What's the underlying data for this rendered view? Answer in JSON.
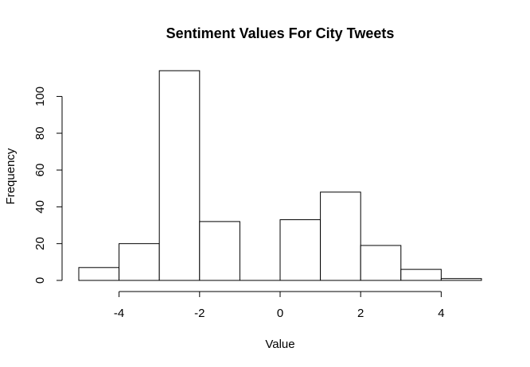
{
  "chart_data": {
    "type": "bar",
    "title": "Sentiment Values For City Tweets",
    "xlabel": "Value",
    "ylabel": "Frequency",
    "bins": [
      {
        "start": -5,
        "end": -4,
        "count": 7
      },
      {
        "start": -4,
        "end": -3,
        "count": 20
      },
      {
        "start": -3,
        "end": -2,
        "count": 114
      },
      {
        "start": -2,
        "end": -1,
        "count": 32
      },
      {
        "start": -1,
        "end": 0,
        "count": 0
      },
      {
        "start": 0,
        "end": 1,
        "count": 33
      },
      {
        "start": 1,
        "end": 2,
        "count": 48
      },
      {
        "start": 2,
        "end": 3,
        "count": 19
      },
      {
        "start": 3,
        "end": 4,
        "count": 6
      },
      {
        "start": 4,
        "end": 5,
        "count": 1
      }
    ],
    "xticks": [
      -4,
      -2,
      0,
      2,
      4
    ],
    "yticks": [
      0,
      20,
      40,
      60,
      80,
      100
    ],
    "xlim": [
      -5,
      5
    ],
    "ylim": [
      0,
      114
    ],
    "grid": false
  }
}
